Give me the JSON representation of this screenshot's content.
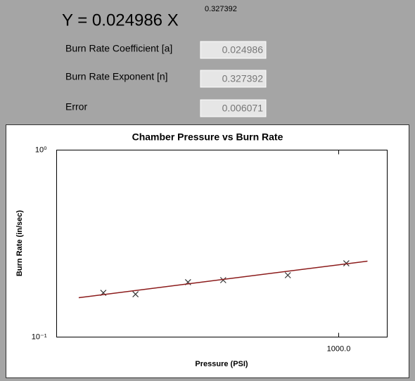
{
  "header": {
    "formula": "Y = 0.024986 X",
    "exponent": "0.327392"
  },
  "fields": [
    {
      "label": "Burn Rate Coefficient [a]",
      "value": "0.024986"
    },
    {
      "label": "Burn Rate Exponent [n]",
      "value": "0.327392"
    },
    {
      "label": "Error",
      "value": "0.006071"
    }
  ],
  "chart_data": {
    "type": "scatter",
    "title": "Chamber Pressure vs Burn Rate",
    "x_label": "Pressure (PSI)",
    "y_label": "Burn Rate (in/sec)",
    "x_scale": "log",
    "y_scale": "log",
    "xlim": [
      261,
      1260
    ],
    "ylim": [
      0.1,
      1
    ],
    "xticks": [
      {
        "value": 1000,
        "label": "1000.0"
      }
    ],
    "yticks": [
      {
        "value": 0.1,
        "label": "10⁻¹"
      },
      {
        "value": 1,
        "label": "10⁰"
      }
    ],
    "series": [
      {
        "type": "scatter",
        "marker": "x",
        "color": "#333333",
        "x": [
          326,
          380,
          488,
          577,
          785,
          1037
        ],
        "values": [
          0.1725,
          0.1695,
          0.1965,
          0.2016,
          0.2142,
          0.248
        ]
      },
      {
        "type": "line",
        "color": "#8b1a1a",
        "x": [
          290,
          1147
        ],
        "values": [
          0.1624,
          0.2547
        ]
      }
    ]
  }
}
